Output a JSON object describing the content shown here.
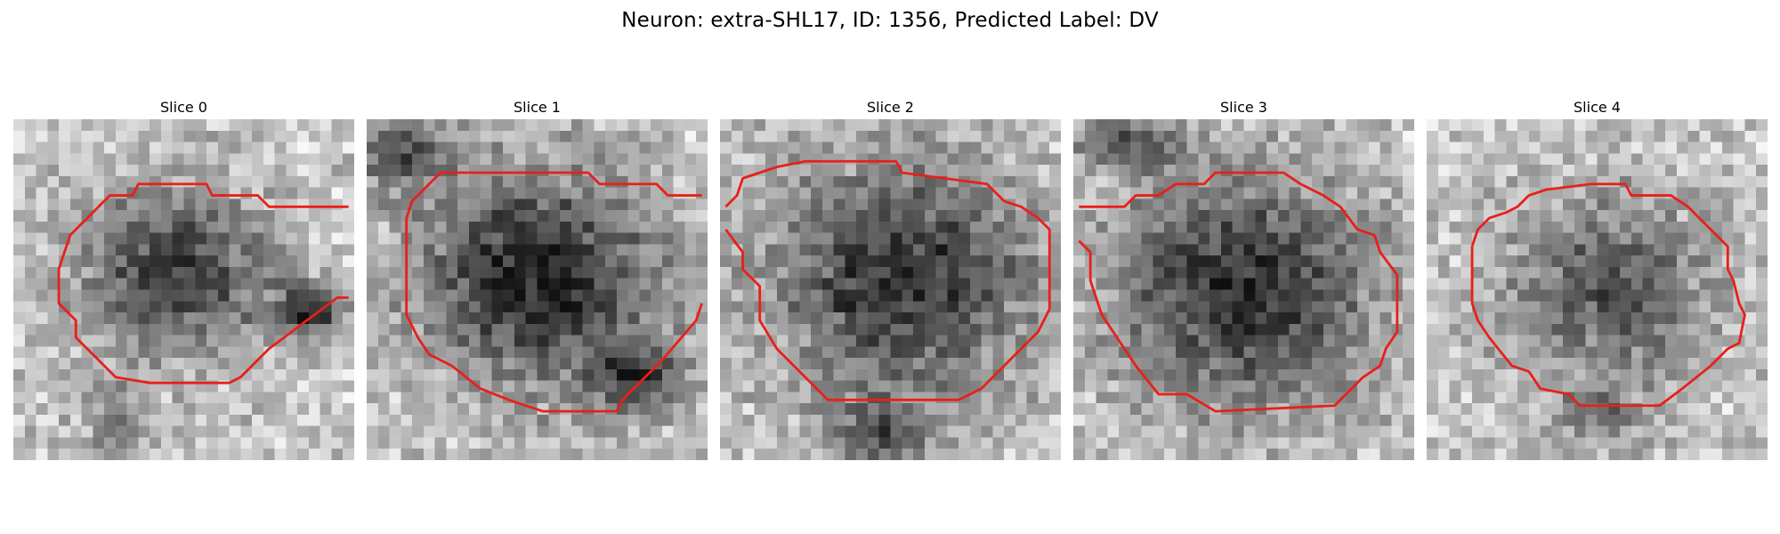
{
  "figure": {
    "title": "Neuron: extra-SHL17, ID: 1356, Predicted Label: DV",
    "contour_color": "#e8201a"
  },
  "panels": [
    {
      "title": "Slice 0"
    },
    {
      "title": "Slice 1"
    },
    {
      "title": "Slice 2"
    },
    {
      "title": "Slice 3"
    },
    {
      "title": "Slice 4"
    }
  ]
}
